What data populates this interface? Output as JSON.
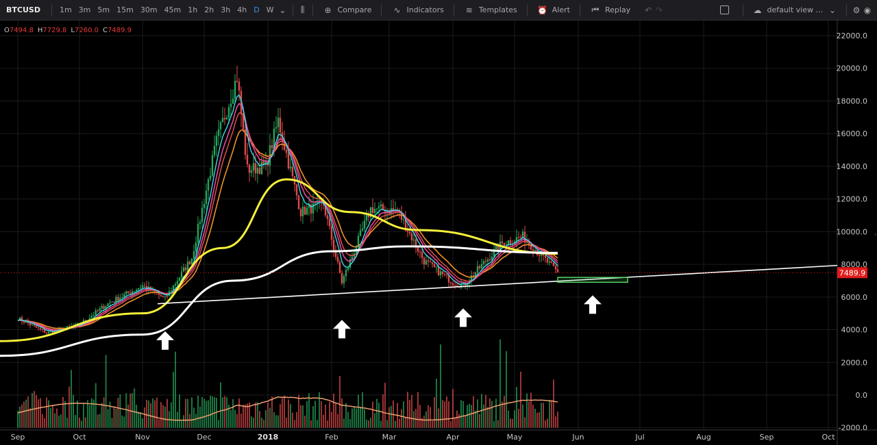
{
  "toolbar": {
    "symbol": "BTCUSD",
    "intervals": [
      "1m",
      "3m",
      "5m",
      "15m",
      "30m",
      "45m",
      "1h",
      "2h",
      "3h",
      "4h",
      "D",
      "W"
    ],
    "active_interval": "D",
    "compare_label": "Compare",
    "indicators_label": "Indicators",
    "templates_label": "Templates",
    "alert_label": "Alert",
    "replay_label": "Replay",
    "layout_label": "default view ..."
  },
  "legend": {
    "open_key": "O",
    "open_value": "7494.8",
    "high_key": "H",
    "high_value": "7729.8",
    "low_key": "L",
    "low_value": "7260.0",
    "close_key": "C",
    "close_value": "7489.9"
  },
  "colors": {
    "up": "#26a65b",
    "down": "#e04a4a",
    "price_tag": "#e01b1b",
    "ma_fast": "#e64aa0",
    "ma_cyan": "#3fd9e6",
    "ma_red": "#ef5350",
    "ma_orange": "#f0922b",
    "ma_yellow": "#f5f03a",
    "ma_white": "#ffffff",
    "vol_ma": "#f0a070"
  },
  "chart_data": {
    "type": "line",
    "symbol": "BTCUSD",
    "timeframe": "D",
    "y_ticks": [
      "22000.0",
      "20000.0",
      "18000.0",
      "16000.0",
      "14000.0",
      "12000.0",
      "10000.0",
      "8000.0",
      "6000.0",
      "4000.0",
      "2000.0",
      "0.0",
      "-2000.0"
    ],
    "x_ticks": [
      "Sep",
      "Oct",
      "Nov",
      "Dec",
      "2018",
      "Feb",
      "Mar",
      "Apr",
      "May",
      "Jun",
      "Jul",
      "Aug",
      "Sep",
      "Oct"
    ],
    "ylim": [
      -2000,
      22000
    ],
    "last_price": "7489.9",
    "price_path": [
      [
        "2017-09-01",
        4700
      ],
      [
        "2017-09-15",
        3800
      ],
      [
        "2017-10-01",
        4300
      ],
      [
        "2017-10-15",
        5600
      ],
      [
        "2017-11-01",
        6700
      ],
      [
        "2017-11-12",
        5900
      ],
      [
        "2017-11-25",
        8400
      ],
      [
        "2017-12-07",
        15500
      ],
      [
        "2017-12-17",
        19500
      ],
      [
        "2017-12-22",
        13800
      ],
      [
        "2017-12-31",
        14000
      ],
      [
        "2018-01-06",
        16800
      ],
      [
        "2018-01-17",
        11200
      ],
      [
        "2018-01-28",
        11700
      ],
      [
        "2018-02-06",
        6900
      ],
      [
        "2018-02-20",
        11400
      ],
      [
        "2018-03-05",
        11300
      ],
      [
        "2018-03-18",
        8200
      ],
      [
        "2018-04-01",
        6900
      ],
      [
        "2018-04-06",
        6700
      ],
      [
        "2018-04-25",
        9300
      ],
      [
        "2018-05-05",
        9700
      ],
      [
        "2018-05-22",
        7490
      ]
    ],
    "moving_averages": {
      "white_long": [
        [
          "2017-08-25",
          2400
        ],
        [
          "2017-11-01",
          3700
        ],
        [
          "2017-12-15",
          7000
        ],
        [
          "2018-02-01",
          8800
        ],
        [
          "2018-03-10",
          9100
        ],
        [
          "2018-05-22",
          8700
        ]
      ],
      "yellow": [
        [
          "2017-08-25",
          3300
        ],
        [
          "2017-11-01",
          5000
        ],
        [
          "2017-12-10",
          9000
        ],
        [
          "2018-01-10",
          13200
        ],
        [
          "2018-02-10",
          11200
        ],
        [
          "2018-03-15",
          10100
        ],
        [
          "2018-05-22",
          8650
        ]
      ]
    },
    "support_trendline": [
      [
        "2017-11-10",
        5600
      ],
      [
        "2018-10-01",
        7900
      ]
    ],
    "target_zone": [
      [
        "2018-05-22",
        6900
      ],
      [
        "2018-06-25",
        7200
      ]
    ],
    "arrow_markers": [
      "2017-11-12",
      "2018-02-06",
      "2018-04-06",
      "2018-06-08"
    ],
    "volume_axis_note": "Volume histogram below price with moving average"
  }
}
